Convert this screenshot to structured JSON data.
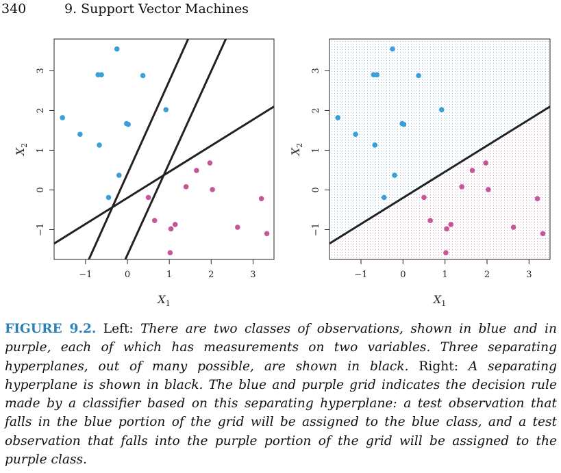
{
  "header": {
    "page_number": "340",
    "running_head": "9.  Support Vector Machines"
  },
  "colors": {
    "blue": "#3a9fd8",
    "purple": "#c6569a",
    "line": "#222222"
  },
  "chart_data": [
    {
      "type": "scatter",
      "panel": "left",
      "xlabel": "X1",
      "ylabel": "X2",
      "xlim": [
        -1.75,
        3.5
      ],
      "ylim": [
        -1.75,
        3.8
      ],
      "xticks": [
        -1,
        0,
        1,
        2,
        3
      ],
      "yticks": [
        -1,
        0,
        1,
        2,
        3
      ],
      "series": [
        {
          "class": "blue",
          "points": [
            [
              -0.25,
              3.55
            ],
            [
              -0.7,
              2.9
            ],
            [
              -0.62,
              2.9
            ],
            [
              0.37,
              2.88
            ],
            [
              0.92,
              2.02
            ],
            [
              -1.55,
              1.82
            ],
            [
              -1.13,
              1.4
            ],
            [
              -0.02,
              1.67
            ],
            [
              0.02,
              1.65
            ],
            [
              -0.67,
              1.13
            ],
            [
              -0.2,
              0.37
            ],
            [
              -0.45,
              -0.19
            ]
          ]
        },
        {
          "class": "purple",
          "points": [
            [
              1.97,
              0.68
            ],
            [
              1.65,
              0.49
            ],
            [
              1.4,
              0.08
            ],
            [
              2.03,
              0.01
            ],
            [
              3.2,
              -0.22
            ],
            [
              0.5,
              -0.19
            ],
            [
              0.65,
              -0.77
            ],
            [
              1.14,
              -0.87
            ],
            [
              1.04,
              -0.98
            ],
            [
              2.63,
              -0.94
            ],
            [
              3.33,
              -1.1
            ],
            [
              1.02,
              -1.58
            ]
          ]
        }
      ],
      "lines": [
        {
          "x1": -1.75,
          "y1": -1.35,
          "x2": 3.5,
          "y2": 2.1
        },
        {
          "x1": -0.92,
          "y1": -1.75,
          "x2": 1.45,
          "y2": 3.8
        },
        {
          "x1": -0.05,
          "y1": -1.75,
          "x2": 2.35,
          "y2": 3.8
        }
      ]
    },
    {
      "type": "scatter",
      "panel": "right",
      "xlabel": "X1",
      "ylabel": "X2",
      "xlim": [
        -1.75,
        3.5
      ],
      "ylim": [
        -1.75,
        3.8
      ],
      "xticks": [
        -1,
        0,
        1,
        2,
        3
      ],
      "yticks": [
        -1,
        0,
        1,
        2,
        3
      ],
      "decision_grid": true,
      "series": [
        {
          "class": "blue",
          "points": [
            [
              -0.25,
              3.55
            ],
            [
              -0.7,
              2.9
            ],
            [
              -0.62,
              2.9
            ],
            [
              0.37,
              2.88
            ],
            [
              0.92,
              2.02
            ],
            [
              -1.55,
              1.82
            ],
            [
              -1.13,
              1.4
            ],
            [
              -0.02,
              1.67
            ],
            [
              0.02,
              1.65
            ],
            [
              -0.67,
              1.13
            ],
            [
              -0.2,
              0.37
            ],
            [
              -0.45,
              -0.19
            ]
          ]
        },
        {
          "class": "purple",
          "points": [
            [
              1.97,
              0.68
            ],
            [
              1.65,
              0.49
            ],
            [
              1.4,
              0.08
            ],
            [
              2.03,
              0.01
            ],
            [
              3.2,
              -0.22
            ],
            [
              0.5,
              -0.19
            ],
            [
              0.65,
              -0.77
            ],
            [
              1.14,
              -0.87
            ],
            [
              1.04,
              -0.98
            ],
            [
              2.63,
              -0.94
            ],
            [
              3.33,
              -1.1
            ],
            [
              1.02,
              -1.58
            ]
          ]
        }
      ],
      "lines": [
        {
          "x1": -1.75,
          "y1": -1.35,
          "x2": 3.5,
          "y2": 2.1
        }
      ]
    }
  ],
  "caption": {
    "label": "FIGURE 9.2.",
    "left_word": "Left:",
    "left_text": "There are two classes of observations, shown in blue and in purple, each of which has measurements on two variables. Three separating hyperplanes, out of many possible, are shown in black.",
    "right_word": "Right:",
    "right_text": "A separating hyperplane is shown in black. The blue and purple grid indicates the decision rule made by a classifier based on this separating hyperplane: a test observation that falls in the blue portion of the grid will be assigned to the blue class, and a test observation that falls into the purple portion of the grid will be assigned to the purple class."
  }
}
